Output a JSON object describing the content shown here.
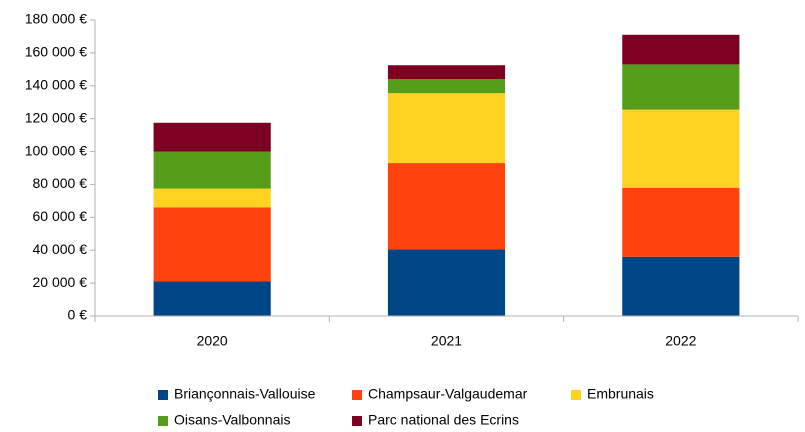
{
  "chart_data": {
    "type": "stacked_bar",
    "categories": [
      "2020",
      "2021",
      "2022"
    ],
    "series": [
      {
        "name": "Briançonnais-Vallouise",
        "color": "#004586",
        "values": [
          21000,
          40500,
          36000
        ]
      },
      {
        "name": "Champsaur-Valgaudemar",
        "color": "#ff420e",
        "values": [
          45000,
          52500,
          42000
        ]
      },
      {
        "name": "Embrunais",
        "color": "#ffd320",
        "values": [
          11500,
          42500,
          47500
        ]
      },
      {
        "name": "Oisans-Valbonnais",
        "color": "#579d1c",
        "values": [
          22500,
          8500,
          27500
        ]
      },
      {
        "name": "Parc national des Ecrins",
        "color": "#7e0021",
        "values": [
          17500,
          8500,
          18000
        ]
      }
    ],
    "ylim": [
      0,
      180000
    ],
    "yticks": [
      {
        "value": 0,
        "label": "0 €"
      },
      {
        "value": 20000,
        "label": "20 000 €"
      },
      {
        "value": 40000,
        "label": "40 000 €"
      },
      {
        "value": 60000,
        "label": "60 000 €"
      },
      {
        "value": 80000,
        "label": "80 000 €"
      },
      {
        "value": 100000,
        "label": "100 000 €"
      },
      {
        "value": 120000,
        "label": "120 000 €"
      },
      {
        "value": 140000,
        "label": "140 000 €"
      },
      {
        "value": 160000,
        "label": "160 000 €"
      },
      {
        "value": 180000,
        "label": "180 000 €"
      }
    ],
    "grid": false,
    "legend": "bottom"
  }
}
